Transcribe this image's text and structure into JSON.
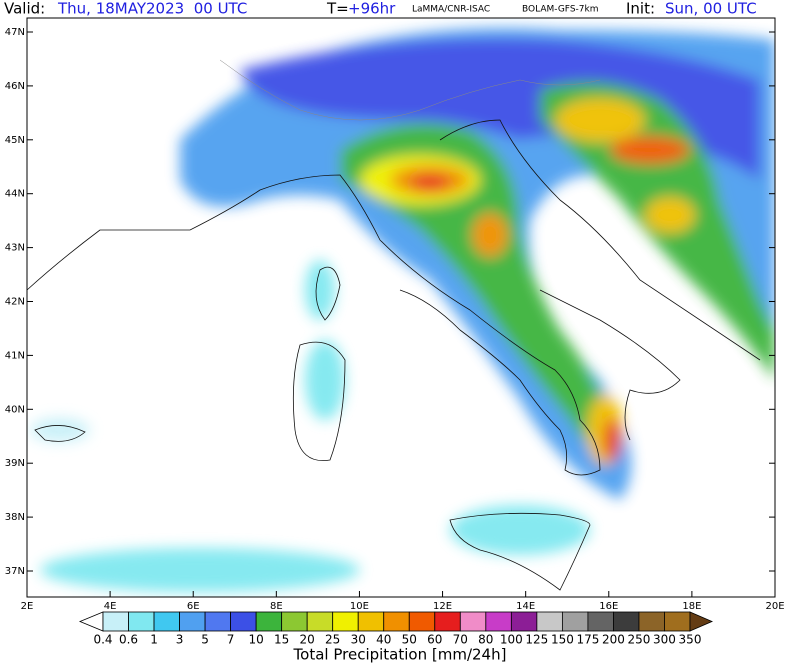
{
  "header": {
    "valid_label": "Valid:",
    "valid_time": "Thu, 18MAY2023  00 UTC",
    "lead_label": "T=",
    "lead_time": "+96hr",
    "source": "LaMMA/CNR-ISAC",
    "model": "BOLAM-GFS-7km",
    "init_label": "Init:",
    "init_time": "Sun, 00 UTC"
  },
  "map": {
    "lat_labels": [
      "47N",
      "46N",
      "45N",
      "44N",
      "43N",
      "42N",
      "41N",
      "40N",
      "39N",
      "38N",
      "37N"
    ],
    "lon_labels": [
      "2E",
      "4E",
      "6E",
      "8E",
      "10E",
      "12E",
      "14E",
      "16E",
      "18E",
      "20E"
    ]
  },
  "colorbar": {
    "title": "Total Precipitation [mm/24h]",
    "labels": [
      0.4,
      0.6,
      1,
      3,
      5,
      7,
      10,
      15,
      20,
      25,
      30,
      40,
      50,
      60,
      70,
      80,
      100,
      125,
      150,
      175,
      200,
      250,
      300,
      350
    ],
    "colors": [
      "#c8f0f8",
      "#80e8f0",
      "#40c8f0",
      "#50a0f0",
      "#5078f0",
      "#3c50e6",
      "#3cb43c",
      "#8cc832",
      "#c8dc28",
      "#f0f000",
      "#f0c000",
      "#f09000",
      "#f05a00",
      "#e61e1e",
      "#f08cc8",
      "#c83cc8",
      "#8c1e96",
      "#c8c8c8",
      "#a0a0a0",
      "#646464",
      "#3c3c3c",
      "#8c6428",
      "#a06e1e"
    ],
    "under_color": "#ffffff",
    "over_color": "#643c14"
  }
}
